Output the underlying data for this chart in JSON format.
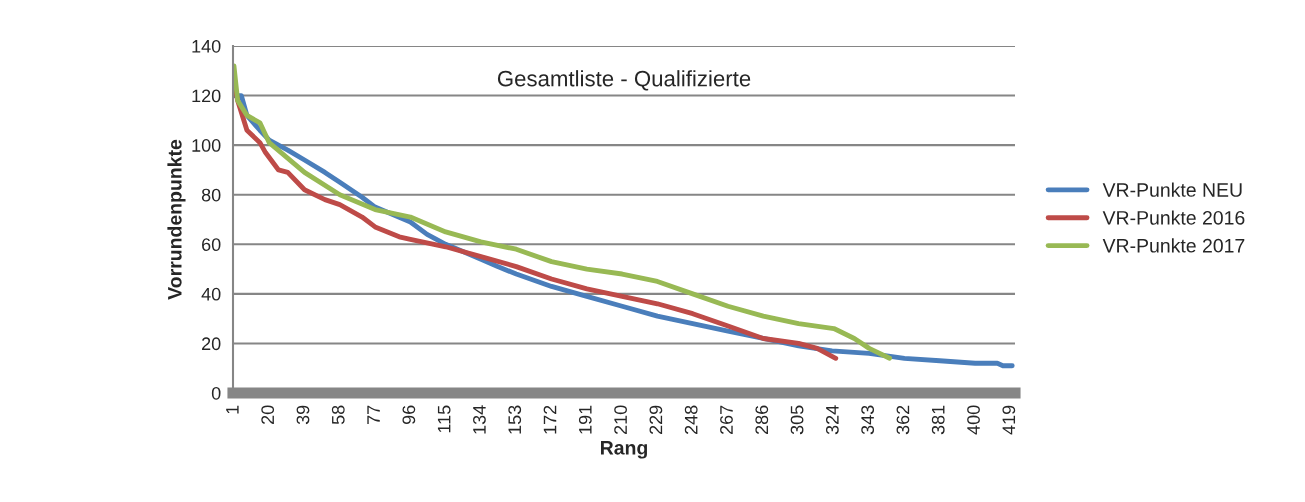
{
  "chart_data": {
    "type": "line",
    "title": "Gesamtliste - Qualifizierte",
    "xlabel": "Rang",
    "ylabel": "Vorrundenpunkte",
    "xlim": [
      0.5,
      421.5
    ],
    "xticks": [
      1,
      20,
      39,
      58,
      77,
      96,
      115,
      134,
      153,
      172,
      191,
      210,
      229,
      248,
      267,
      286,
      305,
      324,
      343,
      362,
      381,
      400,
      419
    ],
    "ylim": [
      0,
      140
    ],
    "yticks": [
      0,
      20,
      40,
      60,
      80,
      100,
      120,
      140
    ],
    "grid": "y",
    "legend": "right",
    "marker": "none",
    "line_style": "solid",
    "series": [
      {
        "name": "VR-Punkte NEU",
        "color": "#4a7ebb",
        "x": [
          1,
          5,
          8,
          15,
          20,
          30,
          39,
          50,
          58,
          70,
          77,
          96,
          105,
          115,
          134,
          143,
          153,
          172,
          191,
          210,
          229,
          248,
          267,
          286,
          305,
          323,
          343,
          362,
          381,
          400,
          412,
          415,
          420
        ],
        "values": [
          120,
          120,
          112,
          106,
          102,
          98,
          94,
          89,
          85,
          79,
          75,
          69,
          64,
          60,
          54,
          51,
          48,
          43,
          39,
          35,
          31,
          28,
          25,
          22,
          19,
          17,
          16,
          14,
          13,
          12,
          12,
          11,
          11
        ]
      },
      {
        "name": "VR-Punkte 2016",
        "color": "#be4b48",
        "x": [
          1,
          3,
          8,
          15,
          18,
          25,
          30,
          39,
          50,
          58,
          70,
          77,
          90,
          96,
          115,
          134,
          153,
          172,
          191,
          210,
          229,
          248,
          267,
          286,
          305,
          315,
          325
        ],
        "values": [
          125,
          118,
          106,
          101,
          97,
          90,
          89,
          82,
          78,
          76,
          71,
          67,
          63,
          62,
          59,
          55,
          51,
          46,
          42,
          39,
          36,
          32,
          27,
          22,
          20,
          18,
          14
        ]
      },
      {
        "name": "VR-Punkte 2017",
        "color": "#98b954",
        "x": [
          1,
          3,
          8,
          15,
          20,
          39,
          58,
          77,
          96,
          115,
          134,
          153,
          172,
          191,
          210,
          229,
          248,
          267,
          286,
          305,
          324,
          335,
          343,
          354
        ],
        "values": [
          132,
          118,
          112,
          109,
          101,
          89,
          80,
          74,
          71,
          65,
          61,
          58,
          53,
          50,
          48,
          45,
          40,
          35,
          31,
          28,
          26,
          22,
          18,
          14
        ]
      }
    ]
  }
}
